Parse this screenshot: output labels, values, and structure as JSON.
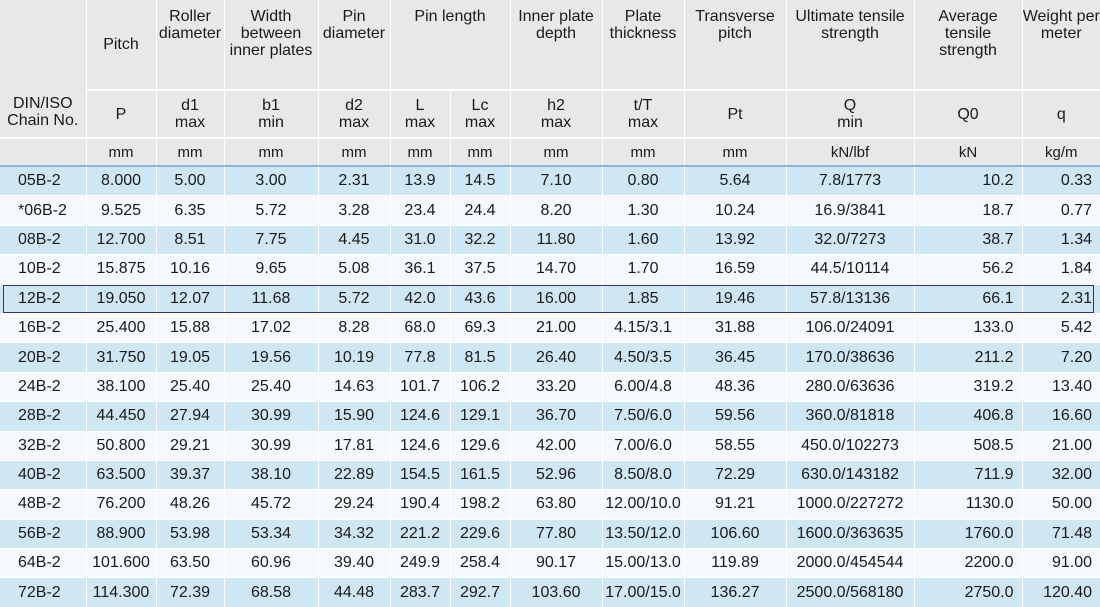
{
  "header": {
    "chain_no": "DIN/ISO Chain No.",
    "columns": [
      {
        "label": "Pitch",
        "symbol": "P",
        "sub": "",
        "unit": "mm"
      },
      {
        "label": "Roller diameter",
        "symbol": "d1",
        "sub": "max",
        "unit": "mm"
      },
      {
        "label": "Width between inner plates",
        "symbol": "b1",
        "sub": "min",
        "unit": "mm"
      },
      {
        "label": "Pin diameter",
        "symbol": "d2",
        "sub": "max",
        "unit": "mm"
      },
      {
        "label": "Pin length",
        "symbol": "L",
        "sub": "max",
        "unit": "mm"
      },
      {
        "label": "",
        "symbol": "Lc",
        "sub": "max",
        "unit": "mm"
      },
      {
        "label": "Inner plate depth",
        "symbol": "h2",
        "sub": "max",
        "unit": "mm"
      },
      {
        "label": "Plate thickness",
        "symbol": "t/T",
        "sub": "max",
        "unit": "mm"
      },
      {
        "label": "Transverse pitch",
        "symbol": "Pt",
        "sub": "",
        "unit": "mm"
      },
      {
        "label": "Ultimate tensile strength",
        "symbol": "Q",
        "sub": "min",
        "unit": "kN/lbf"
      },
      {
        "label": "Average tensile strength",
        "symbol": "Q0",
        "sub": "",
        "unit": "kN"
      },
      {
        "label": "Weight per meter",
        "symbol": "q",
        "sub": "",
        "unit": "kg/m"
      }
    ]
  },
  "rows": [
    [
      "05B-2",
      "8.000",
      "5.00",
      "3.00",
      "2.31",
      "13.9",
      "14.5",
      "7.10",
      "0.80",
      "5.64",
      "7.8/1773",
      "10.2",
      "0.33"
    ],
    [
      "*06B-2",
      "9.525",
      "6.35",
      "5.72",
      "3.28",
      "23.4",
      "24.4",
      "8.20",
      "1.30",
      "10.24",
      "16.9/3841",
      "18.7",
      "0.77"
    ],
    [
      "08B-2",
      "12.700",
      "8.51",
      "7.75",
      "4.45",
      "31.0",
      "32.2",
      "11.80",
      "1.60",
      "13.92",
      "32.0/7273",
      "38.7",
      "1.34"
    ],
    [
      "10B-2",
      "15.875",
      "10.16",
      "9.65",
      "5.08",
      "36.1",
      "37.5",
      "14.70",
      "1.70",
      "16.59",
      "44.5/10114",
      "56.2",
      "1.84"
    ],
    [
      "12B-2",
      "19.050",
      "12.07",
      "11.68",
      "5.72",
      "42.0",
      "43.6",
      "16.00",
      "1.85",
      "19.46",
      "57.8/13136",
      "66.1",
      "2.31"
    ],
    [
      "16B-2",
      "25.400",
      "15.88",
      "17.02",
      "8.28",
      "68.0",
      "69.3",
      "21.00",
      "4.15/3.1",
      "31.88",
      "106.0/24091",
      "133.0",
      "5.42"
    ],
    [
      "20B-2",
      "31.750",
      "19.05",
      "19.56",
      "10.19",
      "77.8",
      "81.5",
      "26.40",
      "4.50/3.5",
      "36.45",
      "170.0/38636",
      "211.2",
      "7.20"
    ],
    [
      "24B-2",
      "38.100",
      "25.40",
      "25.40",
      "14.63",
      "101.7",
      "106.2",
      "33.20",
      "6.00/4.8",
      "48.36",
      "280.0/63636",
      "319.2",
      "13.40"
    ],
    [
      "28B-2",
      "44.450",
      "27.94",
      "30.99",
      "15.90",
      "124.6",
      "129.1",
      "36.70",
      "7.50/6.0",
      "59.56",
      "360.0/81818",
      "406.8",
      "16.60"
    ],
    [
      "32B-2",
      "50.800",
      "29.21",
      "30.99",
      "17.81",
      "124.6",
      "129.6",
      "42.00",
      "7.00/6.0",
      "58.55",
      "450.0/102273",
      "508.5",
      "21.00"
    ],
    [
      "40B-2",
      "63.500",
      "39.37",
      "38.10",
      "22.89",
      "154.5",
      "161.5",
      "52.96",
      "8.50/8.0",
      "72.29",
      "630.0/143182",
      "711.9",
      "32.00"
    ],
    [
      "48B-2",
      "76.200",
      "48.26",
      "45.72",
      "29.24",
      "190.4",
      "198.2",
      "63.80",
      "12.00/10.0",
      "91.21",
      "1000.0/227272",
      "1130.0",
      "50.00"
    ],
    [
      "56B-2",
      "88.900",
      "53.98",
      "53.34",
      "34.32",
      "221.2",
      "229.6",
      "77.80",
      "13.50/12.0",
      "106.60",
      "1600.0/363635",
      "1760.0",
      "71.48"
    ],
    [
      "64B-2",
      "101.600",
      "63.50",
      "60.96",
      "39.40",
      "249.9",
      "258.4",
      "90.17",
      "15.00/13.0",
      "119.89",
      "2000.0/454544",
      "2200.0",
      "91.00"
    ],
    [
      "72B-2",
      "114.300",
      "72.39",
      "68.58",
      "44.48",
      "283.7",
      "292.7",
      "103.60",
      "17.00/15.0",
      "136.27",
      "2500.0/568180",
      "2750.0",
      "120.40"
    ]
  ],
  "highlighted_chain": "12B-2",
  "colors": {
    "header_bg": "#e7e8ea",
    "row_blue": "#cfe6f3",
    "row_light": "#f6f9fb",
    "highlight_border": "#3a2b7a"
  }
}
